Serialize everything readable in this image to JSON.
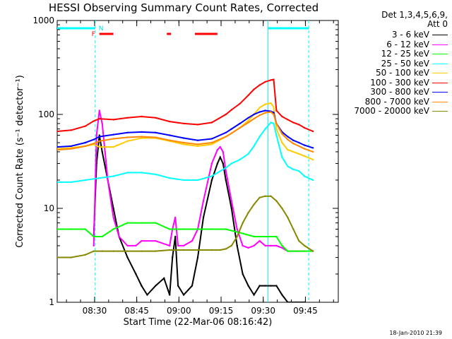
{
  "chart_data": {
    "type": "line",
    "title": "HESSI Observing Summary Count Rates, Corrected",
    "xlabel": "Start Time (22-Mar-06 08:16:42)",
    "ylabel": "Corrected Count Rate (s⁻¹ detector⁻¹)",
    "xlim_minutes": [
      0,
      100
    ],
    "ylim": [
      1,
      1000
    ],
    "yscale": "log",
    "x_ticks": [
      "08:30",
      "08:45",
      "09:00",
      "09:15",
      "09:30",
      "09:45"
    ],
    "x_tick_minutes": [
      13.3,
      28.3,
      43.3,
      58.3,
      73.3,
      88.3
    ],
    "y_ticks": [
      "1",
      "10",
      "100",
      "1000"
    ],
    "y_tick_values": [
      1,
      10,
      100,
      1000
    ],
    "legend_header": "Det 1,3,4,5,6,9,",
    "legend_att": "Att 0",
    "flag_labels": [
      {
        "text": "F",
        "color": "#ff0000"
      },
      {
        "text": "N",
        "color": "#00dddd"
      }
    ],
    "series": [
      {
        "name": "3 - 6 keV",
        "color": "#000000",
        "x": [
          13,
          14,
          15,
          16,
          18,
          20,
          22,
          25,
          28,
          30,
          32,
          35,
          38,
          40,
          41,
          42,
          43,
          45,
          48,
          50,
          52,
          55,
          57,
          58,
          59,
          60,
          62,
          64,
          66,
          68,
          70,
          72,
          74,
          76,
          78,
          80,
          82,
          85,
          88
        ],
        "y": [
          5,
          30,
          60,
          40,
          20,
          10,
          5,
          3,
          2,
          1.5,
          1.2,
          1.5,
          1.8,
          1.2,
          3,
          5,
          1.5,
          1.2,
          1.5,
          3,
          8,
          20,
          30,
          35,
          30,
          20,
          10,
          4,
          2,
          1.5,
          1.2,
          1.5,
          1.5,
          1.5,
          1.5,
          1.2,
          1,
          1,
          1
        ]
      },
      {
        "name": "6 - 12 keV",
        "color": "#ff00ff",
        "x": [
          13,
          14,
          15,
          16,
          17,
          18,
          20,
          22,
          25,
          28,
          30,
          35,
          40,
          41,
          42,
          43,
          45,
          48,
          50,
          52,
          55,
          57,
          58,
          59,
          60,
          62,
          64,
          66,
          68,
          70,
          72,
          74,
          76,
          78,
          80,
          82,
          85,
          88
        ],
        "y": [
          4,
          60,
          110,
          80,
          40,
          20,
          8,
          5,
          4,
          4,
          4.5,
          4.5,
          4,
          6,
          8,
          4,
          4,
          4.5,
          6,
          12,
          30,
          42,
          45,
          40,
          25,
          12,
          6,
          4,
          3.8,
          4,
          4.5,
          4,
          4,
          4,
          3.8,
          3.5,
          3.5,
          3.5
        ]
      },
      {
        "name": "12 - 25 keV",
        "color": "#00ff00",
        "x": [
          0,
          5,
          10,
          13,
          16,
          20,
          25,
          30,
          35,
          40,
          45,
          50,
          55,
          60,
          65,
          70,
          75,
          78,
          80,
          82,
          85,
          88,
          91
        ],
        "y": [
          6,
          6,
          6,
          5,
          5,
          6,
          7,
          7,
          7,
          6,
          6,
          6,
          6,
          6,
          5.5,
          5,
          5,
          5,
          4,
          3.5,
          3.5,
          3.5,
          3.5
        ]
      },
      {
        "name": "25 - 50 keV",
        "color": "#00ffff",
        "x": [
          0,
          5,
          10,
          15,
          20,
          25,
          30,
          35,
          40,
          45,
          50,
          55,
          60,
          62,
          65,
          68,
          70,
          72,
          74,
          76,
          77,
          78,
          80,
          82,
          84,
          86,
          88,
          91
        ],
        "y": [
          19,
          19,
          20,
          21,
          22,
          24,
          24,
          23,
          21,
          20,
          20,
          22,
          27,
          30,
          33,
          38,
          46,
          58,
          70,
          82,
          80,
          60,
          35,
          28,
          26,
          25,
          22,
          20
        ]
      },
      {
        "name": "50 - 100 keV",
        "color": "#ffcc00",
        "x": [
          0,
          5,
          10,
          13,
          15,
          20,
          25,
          30,
          35,
          40,
          45,
          50,
          55,
          60,
          62,
          65,
          68,
          70,
          72,
          74,
          76,
          77,
          78,
          80,
          82,
          84,
          86,
          88,
          91
        ],
        "y": [
          43,
          44,
          46,
          48,
          45,
          45,
          52,
          56,
          56,
          52,
          48,
          46,
          48,
          58,
          63,
          72,
          86,
          100,
          118,
          128,
          132,
          120,
          70,
          50,
          42,
          40,
          38,
          36,
          33
        ]
      },
      {
        "name": "100 - 300 keV",
        "color": "#ff0000",
        "x": [
          0,
          5,
          10,
          13,
          15,
          20,
          25,
          30,
          35,
          40,
          45,
          50,
          55,
          60,
          62,
          65,
          68,
          70,
          72,
          74,
          76,
          77,
          78,
          80,
          82,
          84,
          86,
          88,
          91
        ],
        "y": [
          66,
          68,
          75,
          85,
          90,
          88,
          92,
          95,
          92,
          84,
          80,
          78,
          82,
          100,
          112,
          130,
          160,
          185,
          205,
          222,
          232,
          235,
          110,
          95,
          88,
          82,
          78,
          72,
          66
        ]
      },
      {
        "name": "300 - 800 keV",
        "color": "#0000ff",
        "x": [
          0,
          5,
          10,
          13,
          15,
          20,
          25,
          30,
          35,
          40,
          45,
          50,
          55,
          60,
          62,
          65,
          68,
          70,
          72,
          74,
          76,
          77,
          78,
          80,
          82,
          84,
          86,
          88,
          91
        ],
        "y": [
          45,
          46,
          50,
          54,
          58,
          61,
          64,
          65,
          64,
          60,
          56,
          53,
          55,
          64,
          70,
          80,
          92,
          100,
          106,
          110,
          108,
          105,
          80,
          65,
          58,
          53,
          50,
          47,
          44
        ]
      },
      {
        "name": "800 - 7000 keV",
        "color": "#ff8800",
        "x": [
          0,
          5,
          10,
          13,
          15,
          20,
          25,
          30,
          35,
          40,
          45,
          50,
          55,
          60,
          62,
          65,
          68,
          70,
          72,
          74,
          76,
          77,
          78,
          80,
          82,
          84,
          86,
          88,
          91
        ],
        "y": [
          42,
          43,
          46,
          49,
          52,
          55,
          57,
          58,
          57,
          53,
          50,
          48,
          50,
          58,
          63,
          72,
          82,
          90,
          98,
          104,
          106,
          100,
          80,
          62,
          54,
          49,
          46,
          43,
          40
        ]
      },
      {
        "name": "7000 - 20000 keV",
        "color": "#888800",
        "x": [
          0,
          5,
          10,
          13,
          16,
          20,
          25,
          30,
          35,
          40,
          45,
          50,
          55,
          58,
          60,
          62,
          64,
          66,
          68,
          70,
          72,
          74,
          76,
          78,
          80,
          82,
          84,
          86,
          88,
          91
        ],
        "y": [
          3,
          3,
          3.2,
          3.5,
          3.5,
          3.5,
          3.5,
          3.5,
          3.5,
          3.6,
          3.6,
          3.6,
          3.6,
          3.6,
          3.7,
          4,
          5,
          7,
          9,
          11,
          13,
          13.5,
          13.5,
          12,
          10,
          8,
          6,
          4.5,
          4,
          3.5
        ]
      }
    ],
    "attenuator_bar_cyan": [
      [
        0,
        13.5
      ],
      [
        75,
        89.5
      ]
    ],
    "flare_bars_red": [
      [
        15,
        20
      ],
      [
        39,
        40.5
      ],
      [
        49,
        57
      ]
    ],
    "vlines_cyan": [
      13.5,
      75,
      89.5
    ]
  },
  "stamp": "18-Jan-2010 21:39"
}
